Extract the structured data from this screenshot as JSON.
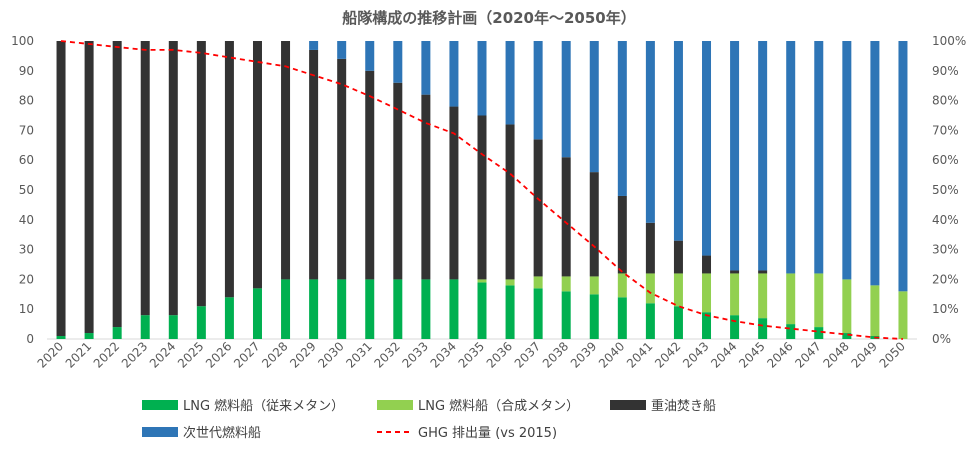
{
  "chart_data": {
    "type": "bar",
    "stacked": true,
    "title": "船隊構成の推移計画（2020年～2050年）",
    "categories": [
      "2020",
      "2021",
      "2022",
      "2023",
      "2024",
      "2025",
      "2026",
      "2027",
      "2028",
      "2029",
      "2030",
      "2031",
      "2032",
      "2033",
      "2034",
      "2035",
      "2036",
      "2037",
      "2038",
      "2039",
      "2040",
      "2041",
      "2042",
      "2043",
      "2044",
      "2045",
      "2046",
      "2047",
      "2048",
      "2049",
      "2050"
    ],
    "ylim": [
      0,
      100
    ],
    "y2lim": [
      0,
      1
    ],
    "yticks": [
      "0",
      "10",
      "20",
      "30",
      "40",
      "50",
      "60",
      "70",
      "80",
      "90",
      "100"
    ],
    "y2ticks": [
      "0%",
      "10%",
      "20%",
      "30%",
      "40%",
      "50%",
      "60%",
      "70%",
      "80%",
      "90%",
      "100%"
    ],
    "grid": false,
    "legend_position": "bottom",
    "series": [
      {
        "name": "LNG 燃料船（従来メタン）",
        "color": "#00b050",
        "values": [
          1,
          2,
          4,
          8,
          8,
          11,
          14,
          17,
          20,
          20,
          20,
          20,
          20,
          20,
          20,
          19,
          18,
          17,
          16,
          15,
          14,
          12,
          11,
          9,
          8,
          7,
          5,
          4,
          2,
          1,
          0
        ]
      },
      {
        "name": "LNG 燃料船（合成メタン）",
        "color": "#92d050",
        "values": [
          0,
          0,
          0,
          0,
          0,
          0,
          0,
          0,
          0,
          0,
          0,
          0,
          0,
          0,
          0,
          1,
          2,
          4,
          5,
          6,
          8,
          10,
          11,
          13,
          14,
          15,
          17,
          18,
          18,
          17,
          16
        ]
      },
      {
        "name": "重油焚き船",
        "color": "#333333",
        "values": [
          99,
          98,
          96,
          92,
          92,
          89,
          86,
          83,
          80,
          77,
          74,
          70,
          66,
          62,
          58,
          55,
          52,
          46,
          40,
          35,
          26,
          17,
          11,
          6,
          1,
          1,
          0,
          0,
          0,
          0,
          0
        ]
      },
      {
        "name": "次世代燃料船",
        "color": "#2e75b6",
        "values": [
          0,
          0,
          0,
          0,
          0,
          0,
          0,
          0,
          0,
          3,
          6,
          10,
          14,
          18,
          22,
          25,
          28,
          33,
          39,
          44,
          52,
          61,
          67,
          72,
          77,
          77,
          78,
          78,
          80,
          82,
          84
        ]
      }
    ],
    "line_series": {
      "name": "GHG 排出量 (vs 2015)",
      "color": "#ff0000",
      "axis": "right",
      "values": [
        1.0,
        0.99,
        0.98,
        0.97,
        0.97,
        0.96,
        0.945,
        0.93,
        0.915,
        0.885,
        0.855,
        0.815,
        0.77,
        0.725,
        0.69,
        0.62,
        0.555,
        0.47,
        0.39,
        0.31,
        0.225,
        0.155,
        0.11,
        0.08,
        0.06,
        0.045,
        0.035,
        0.025,
        0.015,
        0.005,
        0.0
      ]
    }
  }
}
